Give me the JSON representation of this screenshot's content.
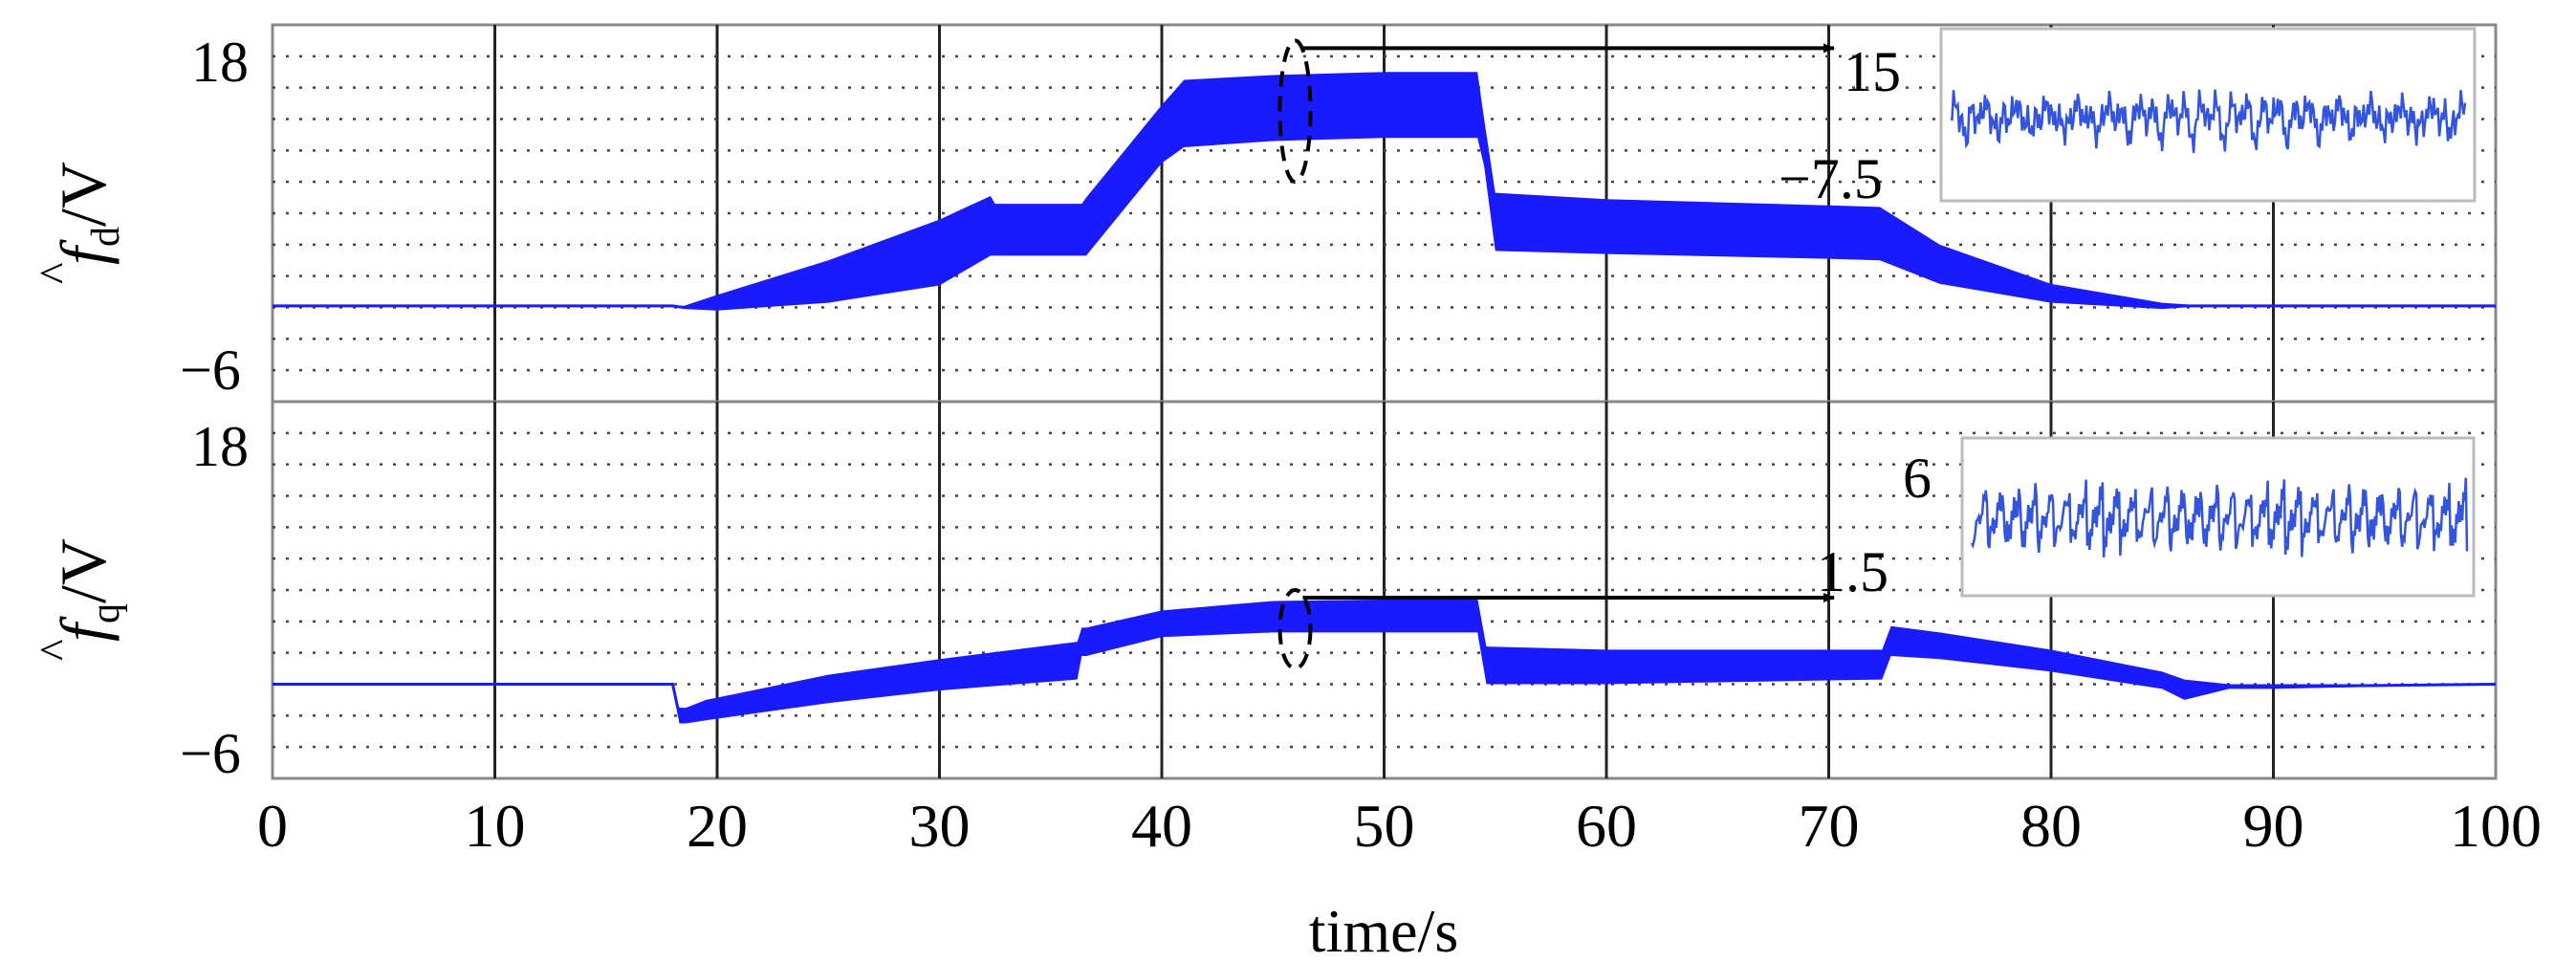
{
  "chart_data": [
    {
      "type": "line",
      "ylabel_symbol": "f",
      "ylabel_subscript": "d",
      "ylabel_unit": "/V",
      "xlim": [
        0,
        100
      ],
      "ylim": [
        -6,
        18
      ],
      "ytick_labels": [
        "18",
        "−6"
      ],
      "grid": true,
      "series_color": "#1a1aff",
      "envelope": {
        "x": [
          0,
          18,
          18.5,
          20,
          25,
          30,
          32.3,
          32.5,
          36.4,
          36.6,
          40,
          41,
          45,
          50,
          54.2,
          54.5,
          55,
          60,
          70,
          72.3,
          75,
          80,
          85,
          87,
          90,
          100
        ],
        "upper": [
          0.1,
          0.1,
          0.1,
          0.8,
          3.0,
          5.6,
          7.1,
          6.6,
          6.6,
          7.0,
          12.9,
          14.5,
          14.8,
          15.0,
          15.0,
          12.0,
          7.3,
          6.9,
          6.5,
          6.4,
          4.0,
          1.5,
          0.3,
          0.1,
          0.1,
          0.1
        ],
        "lower": [
          0.1,
          0.1,
          -0.1,
          -0.2,
          0.3,
          1.4,
          3.3,
          3.3,
          3.3,
          3.3,
          9.2,
          10.2,
          10.6,
          10.8,
          10.8,
          9.0,
          3.6,
          3.4,
          3.1,
          3.0,
          1.5,
          0.3,
          -0.1,
          0.1,
          0.1,
          0.1
        ]
      },
      "annotation": {
        "x": 46,
        "range": [
          8.0,
          17.0
        ],
        "inset_labels": [
          "15",
          "−7.5"
        ]
      }
    },
    {
      "type": "line",
      "ylabel_symbol": "f",
      "ylabel_subscript": "q",
      "ylabel_unit": "/V",
      "xlabel": "time/s",
      "xlim": [
        0,
        100
      ],
      "ylim": [
        -6,
        18
      ],
      "ytick_labels": [
        "18",
        "−6"
      ],
      "xtick_labels": [
        "0",
        "10",
        "20",
        "30",
        "40",
        "50",
        "60",
        "70",
        "80",
        "90",
        "100"
      ],
      "grid": true,
      "series_color": "#1a1aff",
      "envelope": {
        "x": [
          0,
          18,
          18.3,
          18.6,
          19.5,
          25,
          30,
          36.2,
          36.4,
          36.6,
          40,
          45,
          50,
          54.2,
          54.6,
          60,
          72.4,
          72.8,
          75,
          80,
          85,
          86,
          88,
          90,
          100
        ],
        "upper": [
          0.0,
          0.0,
          -1.5,
          -1.5,
          -1.0,
          0.6,
          1.6,
          2.7,
          3.6,
          3.6,
          4.7,
          5.3,
          5.4,
          5.5,
          2.4,
          2.2,
          2.2,
          3.7,
          3.3,
          2.2,
          0.8,
          0.3,
          0.0,
          0.0,
          0.0
        ],
        "lower": [
          0.0,
          0.0,
          -2.5,
          -2.5,
          -2.3,
          -1.2,
          -0.4,
          0.3,
          1.8,
          1.8,
          3.0,
          3.3,
          3.3,
          3.3,
          0.0,
          0.0,
          0.3,
          1.8,
          1.6,
          0.8,
          -0.3,
          -1.0,
          -0.3,
          -0.3,
          0.0
        ]
      },
      "annotation": {
        "x": 46,
        "range": [
          1.0,
          6.0
        ],
        "inset_labels": [
          "6",
          "1.5"
        ]
      }
    }
  ]
}
